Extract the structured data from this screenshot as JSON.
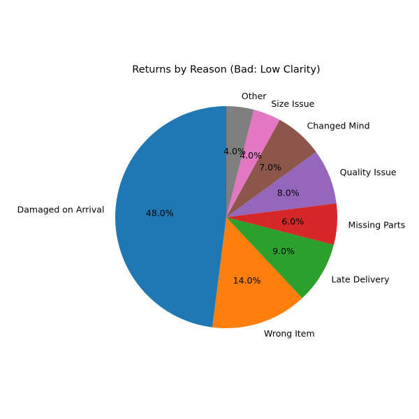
{
  "chart_data": {
    "type": "pie",
    "title": "Returns by Reason (Bad: Low Clarity)",
    "start_angle_deg": 90,
    "direction": "counterclockwise",
    "slices": [
      {
        "label": "Damaged on Arrival",
        "value": 48.0,
        "pct_text": "48.0%",
        "color": "#1f77b4"
      },
      {
        "label": "Wrong Item",
        "value": 14.0,
        "pct_text": "14.0%",
        "color": "#ff7f0e"
      },
      {
        "label": "Late Delivery",
        "value": 9.0,
        "pct_text": "9.0%",
        "color": "#2ca02c"
      },
      {
        "label": "Missing Parts",
        "value": 6.0,
        "pct_text": "6.0%",
        "color": "#d62728"
      },
      {
        "label": "Quality Issue",
        "value": 8.0,
        "pct_text": "8.0%",
        "color": "#9467bd"
      },
      {
        "label": "Changed Mind",
        "value": 7.0,
        "pct_text": "7.0%",
        "color": "#8c564b"
      },
      {
        "label": "Size Issue",
        "value": 4.0,
        "pct_text": "4.0%",
        "color": "#e377c2"
      },
      {
        "label": "Other",
        "value": 4.0,
        "pct_text": "4.0%",
        "color": "#7f7f7f"
      }
    ]
  }
}
